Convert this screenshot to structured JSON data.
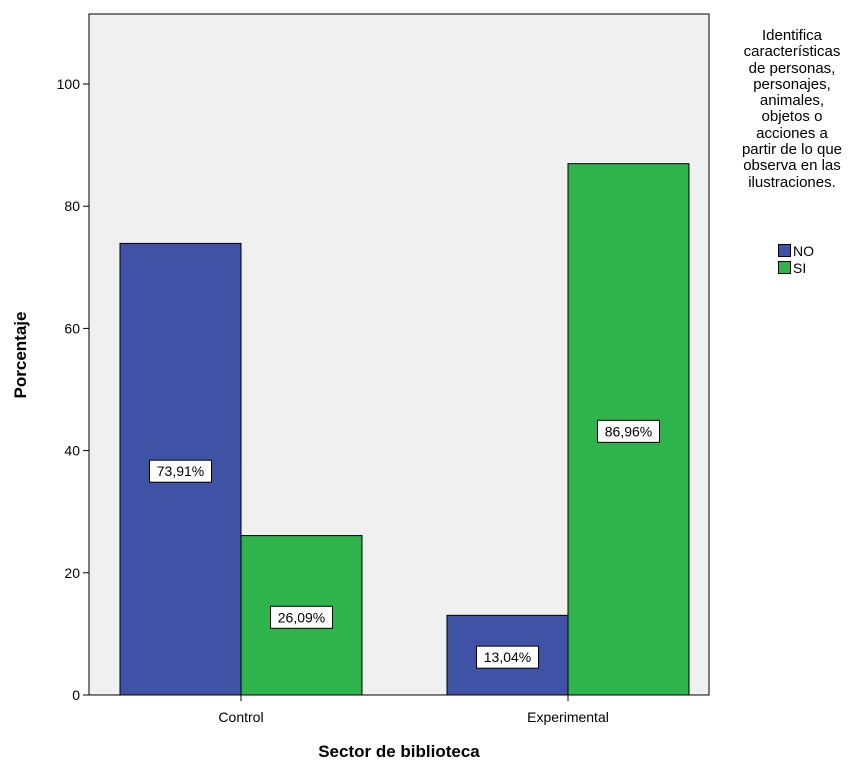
{
  "chart_data": {
    "type": "bar",
    "categories": [
      "Control",
      "Experimental"
    ],
    "series": [
      {
        "name": "NO",
        "color": "#3f52a5",
        "values": [
          73.91,
          13.04
        ],
        "labels": [
          "73,91%",
          "13,04%"
        ]
      },
      {
        "name": "SI",
        "color": "#2eb44a",
        "values": [
          26.09,
          86.96
        ],
        "labels": [
          "26,09%",
          "86,96%"
        ]
      }
    ],
    "title": "",
    "xlabel": "Sector de biblioteca",
    "ylabel": "Porcentaje",
    "ylim": [
      0,
      110
    ],
    "yticks": [
      "0",
      "20",
      "40",
      "60",
      "80",
      "100"
    ],
    "grid": false,
    "plot_background": "#f0f0f0",
    "legend": {
      "position": "right",
      "title_lines": [
        "Identifica",
        "características",
        "de personas,",
        "personajes,",
        "animales,",
        "objetos o",
        "acciones a",
        "partir de lo que",
        "observa en las",
        "ilustraciones."
      ]
    }
  }
}
